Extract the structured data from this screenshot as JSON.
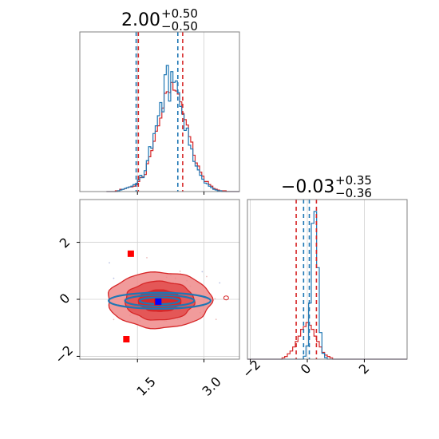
{
  "chart_data": {
    "type": "corner",
    "colors": {
      "red": "#d62728",
      "blue": "#1f77b4",
      "red_fill": "#ee8a8a",
      "red_fill_dark": "#d62728"
    },
    "titles": [
      {
        "value": "2.00",
        "plus": "+0.50",
        "minus": "−0.50"
      },
      {
        "value": "−0.03",
        "plus": "+0.35",
        "minus": "−0.36"
      }
    ],
    "axis_ranges": {
      "x": [
        0.2,
        3.8
      ],
      "y": [
        -2.1,
        3.5
      ]
    },
    "ticks": {
      "bottom_left": [
        {
          "v": 1.5,
          "label": "1.5"
        },
        {
          "v": 3.0,
          "label": "3.0"
        }
      ],
      "left": [
        {
          "v": 2,
          "label": "2"
        },
        {
          "v": 0,
          "label": "0"
        },
        {
          "v": -2,
          "label": "−2"
        }
      ],
      "bottom_right": [
        {
          "v": -2,
          "label": "−2"
        },
        {
          "v": 0,
          "label": "0"
        },
        {
          "v": 2,
          "label": "2"
        }
      ]
    },
    "hist_x": {
      "bins": [
        0.8,
        3.8
      ],
      "red_quantiles": [
        1.52,
        2.52
      ],
      "blue_quantiles": [
        1.47,
        2.41
      ],
      "red": [
        0,
        0,
        0,
        0,
        1,
        1,
        3,
        3,
        4,
        5,
        6,
        6,
        7,
        9,
        13,
        18,
        19,
        22,
        36,
        45,
        53,
        65,
        78,
        85,
        95,
        108,
        127,
        129,
        128,
        141,
        131,
        130,
        126,
        116,
        101,
        93,
        86,
        71,
        64,
        47,
        37,
        33,
        25,
        20,
        13,
        13,
        9,
        7,
        4,
        3,
        2,
        1,
        1,
        1,
        0,
        0,
        0,
        0,
        0,
        0
      ],
      "blue": [
        0,
        0,
        0,
        0,
        0,
        1,
        2,
        3,
        4,
        5,
        6,
        7,
        9,
        10,
        15,
        21,
        18,
        27,
        40,
        58,
        56,
        75,
        85,
        98,
        115,
        103,
        151,
        163,
        117,
        155,
        141,
        143,
        128,
        110,
        100,
        79,
        82,
        60,
        55,
        39,
        33,
        28,
        21,
        16,
        11,
        10,
        7,
        5,
        3,
        2,
        1,
        1,
        0,
        0,
        0,
        0,
        0,
        0,
        0,
        0
      ]
    },
    "hist_y": {
      "bins": [
        -2.1,
        3.5
      ],
      "red_quantiles": [
        -0.39,
        0.32
      ],
      "blue_quantiles": [
        -0.13,
        0.07
      ],
      "red": [
        0,
        0,
        0,
        0,
        0,
        0,
        0,
        0,
        0,
        0,
        0,
        0,
        0,
        1,
        2,
        4,
        6,
        9,
        13,
        17,
        22,
        24,
        27,
        25,
        22,
        17,
        13,
        9,
        5,
        3,
        2,
        1,
        0,
        0,
        0,
        0,
        0,
        0,
        0,
        0,
        0,
        0,
        0,
        0,
        0,
        0,
        0,
        0,
        0,
        0,
        0,
        0,
        0,
        0,
        0,
        0,
        0,
        0,
        0,
        0
      ],
      "blue": [
        0,
        0,
        0,
        0,
        0,
        0,
        0,
        0,
        0,
        0,
        0,
        0,
        0,
        0,
        0,
        0,
        0,
        0,
        0,
        0,
        0,
        2,
        9,
        38,
        92,
        100,
        62,
        18,
        4,
        1,
        0,
        0,
        0,
        0,
        0,
        0,
        0,
        0,
        0,
        0,
        0,
        0,
        0,
        0,
        0,
        0,
        0,
        0,
        0,
        0,
        0,
        0,
        0,
        0,
        0,
        0,
        0,
        0,
        0,
        0
      ]
    },
    "markers_red": [
      {
        "x": 1.35,
        "y": 1.6
      },
      {
        "x": 1.25,
        "y": -1.4
      },
      {
        "x": 1.95,
        "y": -0.1
      }
    ],
    "markers_blue": [
      {
        "x": 1.97,
        "y": -0.08
      }
    ],
    "contours_red": [
      {
        "rx": 0.48,
        "ry": 0.38,
        "cx": 2.0,
        "cy": -0.05
      },
      {
        "rx": 0.78,
        "ry": 0.68,
        "cx": 2.0,
        "cy": -0.05
      },
      {
        "rx": 1.17,
        "ry": 0.98,
        "cx": 2.0,
        "cy": -0.03
      }
    ],
    "contours_blue": [
      {
        "rx": 0.45,
        "ry": 0.12,
        "cx": 2.0,
        "cy": -0.05
      },
      {
        "rx": 0.78,
        "ry": 0.2,
        "cx": 2.0,
        "cy": -0.05
      },
      {
        "rx": 1.15,
        "ry": 0.28,
        "cx": 2.0,
        "cy": -0.05
      }
    ],
    "grid": true
  }
}
